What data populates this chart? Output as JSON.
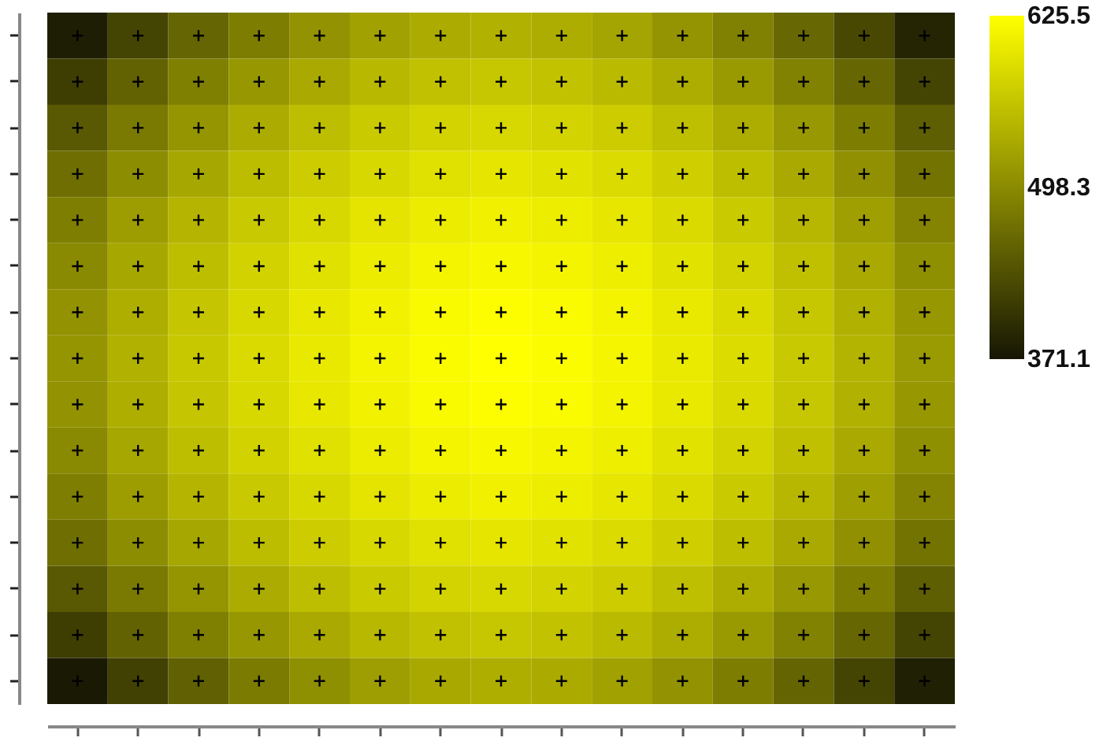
{
  "chart_data": {
    "type": "heatmap",
    "categories": [
      null,
      null,
      null,
      null,
      null,
      null,
      null,
      null,
      null,
      null,
      null,
      null,
      null,
      null,
      null
    ],
    "y_categories": [
      null,
      null,
      null,
      null,
      null,
      null,
      null,
      null,
      null,
      null,
      null,
      null,
      null,
      null,
      null
    ],
    "cells": [
      [
        380,
        422,
        457,
        484,
        507,
        523,
        534,
        540,
        536,
        526,
        509,
        487,
        459,
        426,
        387
      ],
      [
        415,
        454,
        486,
        512,
        532,
        548,
        558,
        563,
        559,
        550,
        535,
        514,
        488,
        458,
        422
      ],
      [
        444,
        480,
        510,
        534,
        553,
        568,
        577,
        582,
        578,
        570,
        556,
        536,
        513,
        484,
        450
      ],
      [
        467,
        501,
        529,
        552,
        570,
        583,
        592,
        597,
        594,
        586,
        572,
        554,
        532,
        504,
        473
      ],
      [
        485,
        518,
        545,
        566,
        583,
        596,
        605,
        609,
        606,
        598,
        585,
        568,
        547,
        521,
        491
      ],
      [
        498,
        529,
        555,
        576,
        592,
        605,
        613,
        617,
        614,
        607,
        594,
        578,
        557,
        532,
        503
      ],
      [
        507,
        537,
        562,
        583,
        599,
        611,
        619,
        623,
        620,
        613,
        601,
        585,
        564,
        540,
        512
      ],
      [
        510,
        540,
        565,
        585,
        601,
        613,
        621,
        625,
        622,
        615,
        603,
        587,
        567,
        543,
        515
      ],
      [
        507,
        537,
        562,
        583,
        599,
        611,
        619,
        623,
        620,
        613,
        601,
        585,
        564,
        540,
        512
      ],
      [
        498,
        529,
        555,
        576,
        592,
        605,
        613,
        617,
        614,
        607,
        594,
        578,
        557,
        532,
        503
      ],
      [
        485,
        518,
        545,
        566,
        583,
        596,
        605,
        609,
        606,
        598,
        585,
        568,
        547,
        521,
        491
      ],
      [
        467,
        501,
        529,
        552,
        570,
        583,
        592,
        597,
        594,
        586,
        572,
        554,
        532,
        504,
        473
      ],
      [
        444,
        480,
        510,
        534,
        553,
        568,
        577,
        582,
        578,
        570,
        556,
        536,
        513,
        484,
        450
      ],
      [
        415,
        454,
        486,
        512,
        532,
        548,
        558,
        563,
        559,
        550,
        535,
        514,
        488,
        458,
        422
      ],
      [
        375,
        418,
        453,
        481,
        503,
        520,
        531,
        537,
        533,
        523,
        506,
        484,
        456,
        422,
        382
      ]
    ],
    "clim": [
      371.1,
      625.5
    ],
    "cticks": [
      371.1,
      498.3,
      625.5
    ],
    "marker": "cross"
  }
}
